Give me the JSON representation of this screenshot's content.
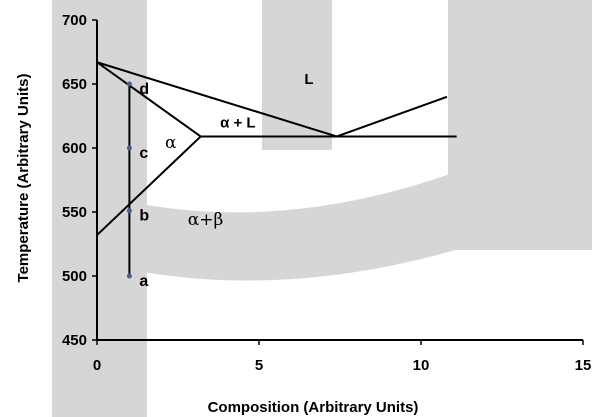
{
  "chart_data": {
    "type": "line",
    "title": "",
    "xlabel": "Composition (Arbitrary Units)",
    "ylabel": "Temperature (Arbitrary Units)",
    "xlim": [
      0,
      15
    ],
    "ylim": [
      450,
      700
    ],
    "xticks": [
      0,
      5,
      10,
      15
    ],
    "yticks": [
      450,
      500,
      550,
      600,
      650,
      700
    ],
    "grid": false,
    "series": [
      {
        "values": [
          [
            0,
            667
          ],
          [
            7.4,
            609
          ],
          [
            10.8,
            640
          ]
        ]
      },
      {
        "values": [
          [
            0,
            667
          ],
          [
            3.2,
            609
          ],
          [
            0,
            532
          ]
        ]
      },
      {
        "values": [
          [
            3.2,
            609
          ],
          [
            11.1,
            609
          ]
        ]
      },
      {
        "values": [
          [
            1,
            500
          ],
          [
            1,
            650
          ]
        ]
      }
    ],
    "points": [
      {
        "label": "a",
        "x": 1,
        "y": 500
      },
      {
        "label": "b",
        "x": 1,
        "y": 551
      },
      {
        "label": "c",
        "x": 1,
        "y": 600
      },
      {
        "label": "d",
        "x": 1,
        "y": 650
      }
    ],
    "annotations": [
      {
        "text": "L",
        "x": 6.4,
        "y": 650
      },
      {
        "text": "α + L",
        "x": 3.8,
        "y": 616
      },
      {
        "text": "α",
        "x": 2.1,
        "y": 600
      },
      {
        "text": "α+β",
        "x": 2.8,
        "y": 540
      }
    ],
    "colors": {
      "line": "#000000",
      "point": "#4a5f8a",
      "watermark": "#d6d6d6"
    }
  }
}
